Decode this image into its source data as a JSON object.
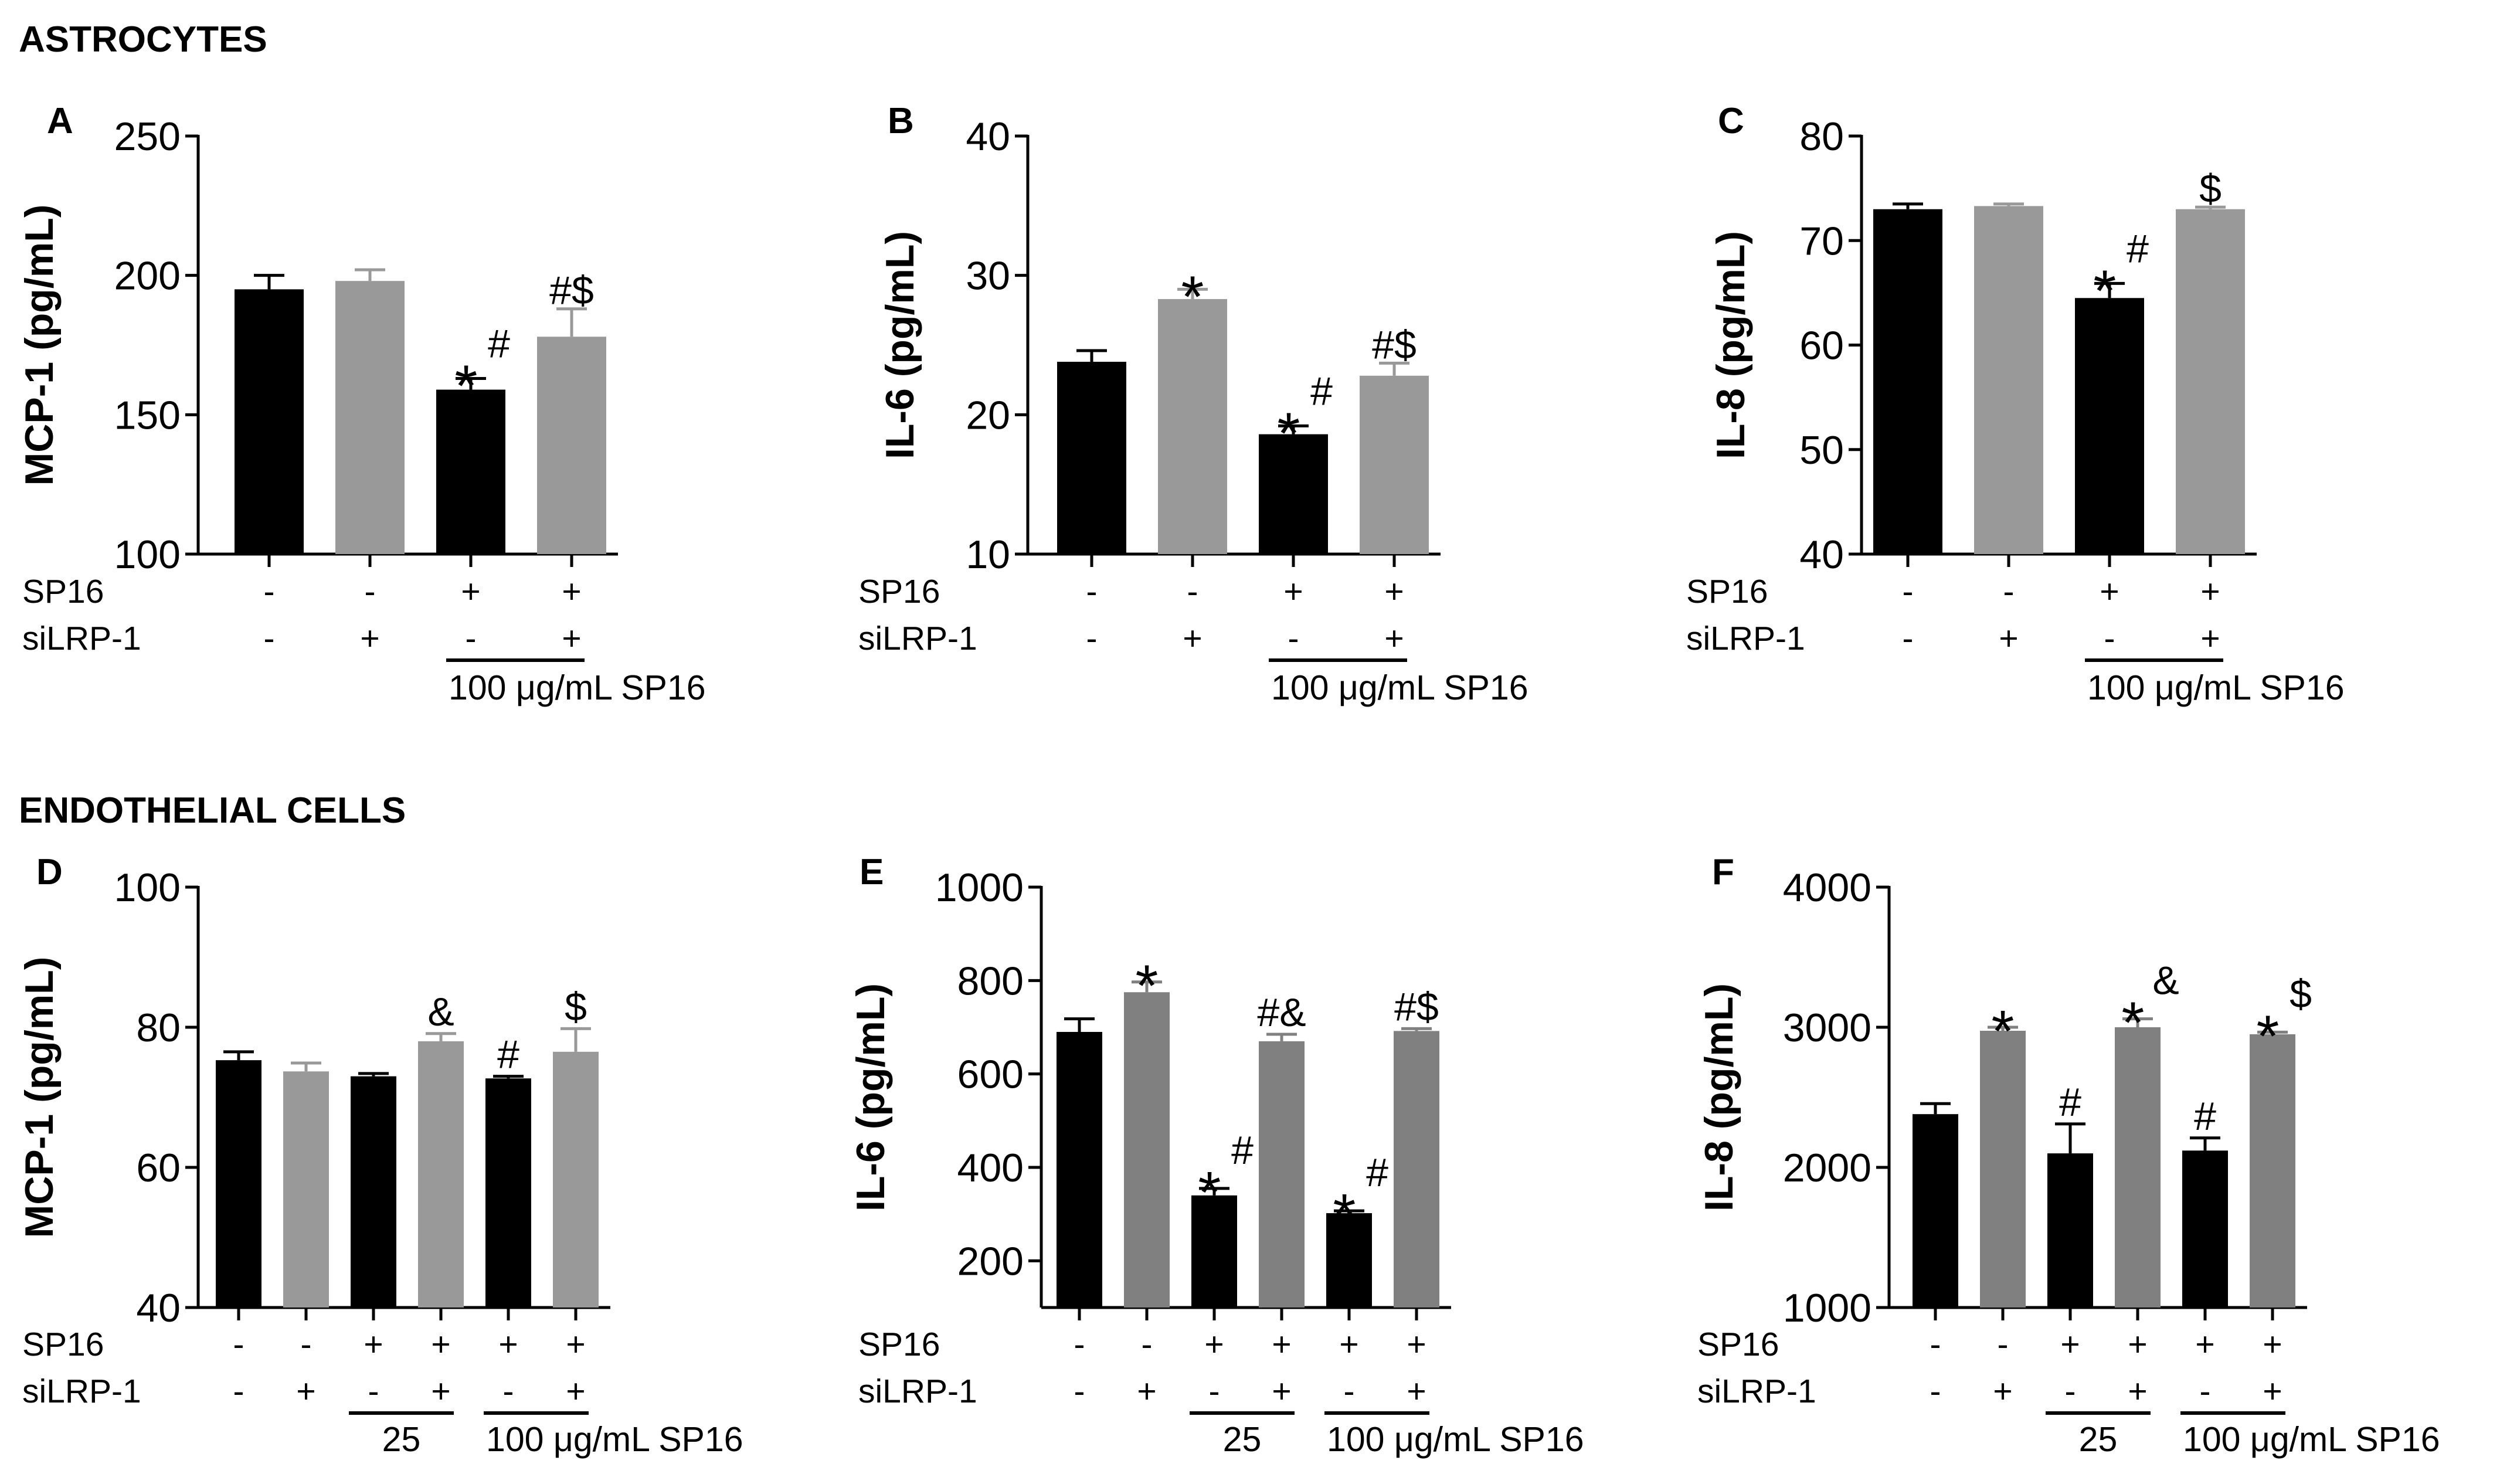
{
  "sections": [
    "ASTROCYTES",
    "ENDOTHELIAL CELLS"
  ],
  "colors": {
    "black": "#000000",
    "gray_light": "#999999",
    "gray_dark": "#808080"
  },
  "chart_data": [
    {
      "panel": "A",
      "type": "bar",
      "ylabel": "MCP-1 (pg/mL)",
      "ylim": [
        100,
        250
      ],
      "yticks": [
        "100",
        "150",
        "200",
        "250"
      ],
      "color_alt": "gray_light",
      "row_labels": [
        "SP16",
        "siLRP-1"
      ],
      "sp16": [
        "-",
        "-",
        "+",
        "+"
      ],
      "silrp": [
        "-",
        "+",
        "-",
        "+"
      ],
      "values": [
        195,
        198,
        159,
        178
      ],
      "errors": [
        5,
        4,
        4,
        10
      ],
      "annotations": [
        {
          "star": "",
          "sup": ""
        },
        {
          "star": "",
          "sup": ""
        },
        {
          "star": "*",
          "sup": "#"
        },
        {
          "star": "",
          "sup": "#$"
        }
      ],
      "groups": [
        {
          "label": "100 μg/mL SP16",
          "bars": [
            2,
            3
          ]
        }
      ]
    },
    {
      "panel": "B",
      "type": "bar",
      "ylabel": "IL-6 (pg/mL)",
      "ylim": [
        10,
        40
      ],
      "yticks": [
        "10",
        "20",
        "30",
        "40"
      ],
      "color_alt": "gray_light",
      "row_labels": [
        "SP16",
        "siLRP-1"
      ],
      "sp16": [
        "-",
        "-",
        "+",
        "+"
      ],
      "silrp": [
        "-",
        "+",
        "-",
        "+"
      ],
      "values": [
        23.8,
        28.3,
        18.6,
        22.8
      ],
      "errors": [
        0.8,
        0.7,
        0.6,
        0.9
      ],
      "annotations": [
        {
          "star": "",
          "sup": ""
        },
        {
          "star": "*",
          "sup": ""
        },
        {
          "star": "*",
          "sup": "#"
        },
        {
          "star": "",
          "sup": "#$"
        }
      ],
      "groups": [
        {
          "label": "100 μg/mL SP16",
          "bars": [
            2,
            3
          ]
        }
      ]
    },
    {
      "panel": "C",
      "type": "bar",
      "ylabel": "IL-8 (pg/mL)",
      "ylim": [
        40,
        80
      ],
      "yticks": [
        "40",
        "50",
        "60",
        "70",
        "80"
      ],
      "color_alt": "gray_light",
      "row_labels": [
        "SP16",
        "siLRP-1"
      ],
      "sp16": [
        "-",
        "-",
        "+",
        "+"
      ],
      "silrp": [
        "-",
        "+",
        "-",
        "+"
      ],
      "values": [
        73.0,
        73.3,
        64.5,
        73.0
      ],
      "errors": [
        0.5,
        0.2,
        1.4,
        0.2
      ],
      "annotations": [
        {
          "star": "",
          "sup": ""
        },
        {
          "star": "",
          "sup": ""
        },
        {
          "star": "*",
          "sup": "#"
        },
        {
          "star": "",
          "sup": "$"
        }
      ],
      "groups": [
        {
          "label": "100 μg/mL SP16",
          "bars": [
            2,
            3
          ]
        }
      ]
    },
    {
      "panel": "D",
      "type": "bar",
      "ylabel": "MCP-1 (pg/mL)",
      "ylim": [
        40,
        100
      ],
      "yticks": [
        "40",
        "60",
        "80",
        "100"
      ],
      "color_alt": "gray_light",
      "row_labels": [
        "SP16",
        "siLRP-1"
      ],
      "sp16": [
        "-",
        "-",
        "+",
        "+",
        "+",
        "+"
      ],
      "silrp": [
        "-",
        "+",
        "-",
        "+",
        "-",
        "+"
      ],
      "values": [
        75.3,
        73.7,
        73.0,
        78.0,
        72.7,
        76.5
      ],
      "errors": [
        1.2,
        1.2,
        0.4,
        1.1,
        0.3,
        3.3
      ],
      "annotations": [
        {
          "star": "",
          "sup": ""
        },
        {
          "star": "",
          "sup": ""
        },
        {
          "star": "",
          "sup": ""
        },
        {
          "star": "",
          "sup": "&"
        },
        {
          "star": "",
          "sup": "#"
        },
        {
          "star": "",
          "sup": "$"
        }
      ],
      "groups": [
        {
          "label": "25",
          "bars": [
            2,
            3
          ]
        },
        {
          "label": "100 μg/mL SP16",
          "bars": [
            4,
            5
          ]
        }
      ]
    },
    {
      "panel": "E",
      "type": "bar",
      "ylabel": "IL-6 (pg/mL)",
      "ylim": [
        100,
        1000
      ],
      "yticks": [
        "200",
        "400",
        "600",
        "800",
        "1000"
      ],
      "color_alt": "gray_dark",
      "row_labels": [
        "SP16",
        "siLRP-1"
      ],
      "sp16": [
        "-",
        "-",
        "+",
        "+",
        "+",
        "+"
      ],
      "silrp": [
        "-",
        "+",
        "-",
        "+",
        "-",
        "+"
      ],
      "values": [
        690,
        775,
        340,
        670,
        302,
        692
      ],
      "errors": [
        28,
        22,
        15,
        15,
        5,
        5
      ],
      "annotations": [
        {
          "star": "",
          "sup": ""
        },
        {
          "star": "*",
          "sup": ""
        },
        {
          "star": "*",
          "sup": "#"
        },
        {
          "star": "",
          "sup": "#&"
        },
        {
          "star": "*",
          "sup": "#"
        },
        {
          "star": "",
          "sup": "#$"
        }
      ],
      "groups": [
        {
          "label": "25",
          "bars": [
            2,
            3
          ]
        },
        {
          "label": "100 μg/mL SP16",
          "bars": [
            4,
            5
          ]
        }
      ]
    },
    {
      "panel": "F",
      "type": "bar",
      "ylabel": "IL-8 (pg/mL)",
      "ylim": [
        1000,
        4000
      ],
      "yticks": [
        "1000",
        "2000",
        "3000",
        "4000"
      ],
      "color_alt": "gray_dark",
      "row_labels": [
        "SP16",
        "siLRP-1"
      ],
      "sp16": [
        "-",
        "-",
        "+",
        "+",
        "+",
        "+"
      ],
      "silrp": [
        "-",
        "+",
        "-",
        "+",
        "-",
        "+"
      ],
      "values": [
        2380,
        2975,
        2100,
        3000,
        2120,
        2950
      ],
      "errors": [
        75,
        25,
        210,
        60,
        90,
        15
      ],
      "annotations": [
        {
          "star": "",
          "sup": ""
        },
        {
          "star": "*",
          "sup": ""
        },
        {
          "star": "",
          "sup": "#"
        },
        {
          "star": "*",
          "sup": "&"
        },
        {
          "star": "",
          "sup": "#"
        },
        {
          "star": "*",
          "sup": "$"
        }
      ],
      "groups": [
        {
          "label": "25",
          "bars": [
            2,
            3
          ]
        },
        {
          "label": "100 μg/mL SP16",
          "bars": [
            4,
            5
          ]
        }
      ]
    }
  ]
}
